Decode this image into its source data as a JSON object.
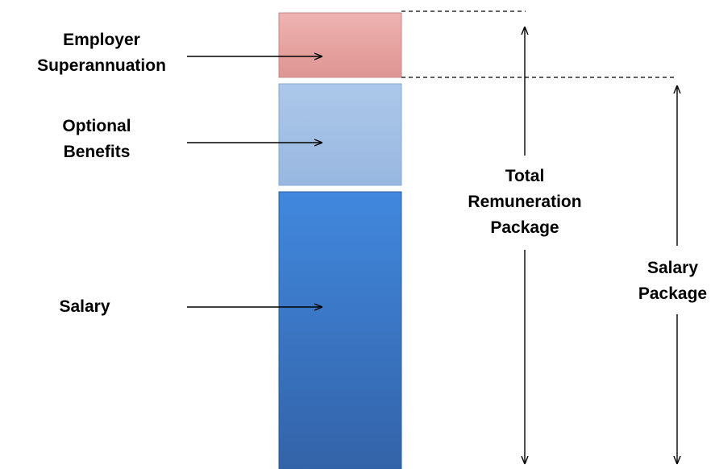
{
  "segments": [
    {
      "key": "superannuation",
      "label_lines": [
        "Employer",
        "Superannuation"
      ],
      "color": "#e6a09e"
    },
    {
      "key": "optional",
      "label_lines": [
        "Optional",
        "Benefits"
      ],
      "color": "#a3c1e6"
    },
    {
      "key": "salary",
      "label_lines": [
        "Salary"
      ],
      "color": "#3b7ad2"
    }
  ],
  "brackets": {
    "total": {
      "label_lines": [
        "Total",
        "Remuneration",
        "Package"
      ]
    },
    "salary_package": {
      "label_lines": [
        "Salary",
        "Package"
      ]
    }
  }
}
